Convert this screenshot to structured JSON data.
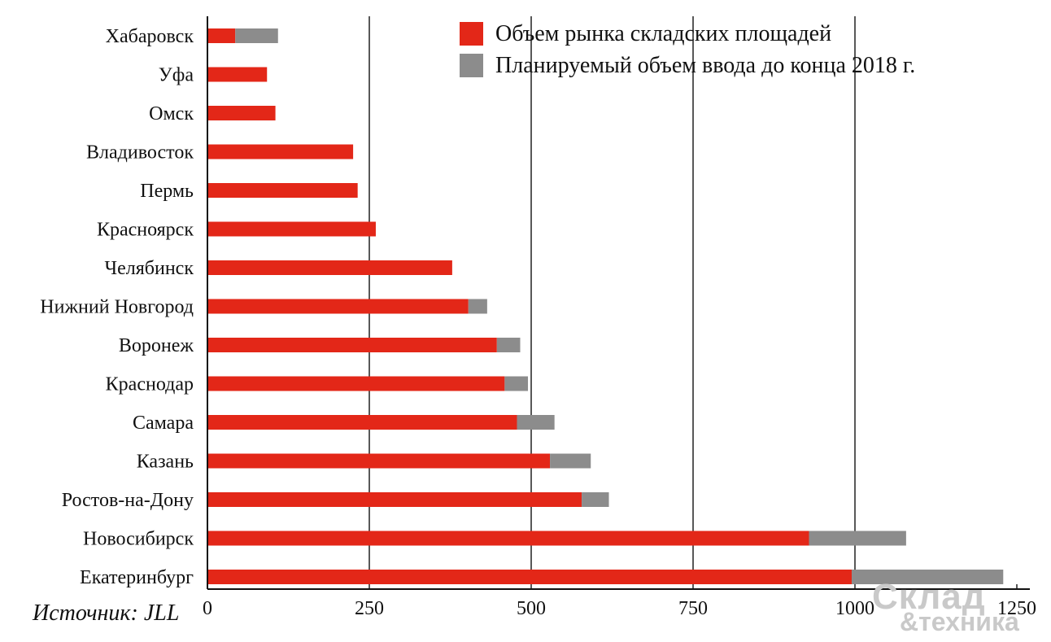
{
  "chart_data": {
    "type": "bar",
    "orientation": "horizontal",
    "stacked": true,
    "categories": [
      "Хабаровск",
      "Уфа",
      "Омск",
      "Владивосток",
      "Пермь",
      "Красноярск",
      "Челябинск",
      "Нижний Новгород",
      "Воронеж",
      "Краснодар",
      "Самара",
      "Казань",
      "Ростов-на-Дону",
      "Новосибирск",
      "Екатеринбург"
    ],
    "series": [
      {
        "name": "Объем рынка складских площадей",
        "color": "#e32718",
        "values": [
          43,
          92,
          105,
          225,
          232,
          260,
          378,
          403,
          447,
          459,
          478,
          529,
          578,
          929,
          995
        ]
      },
      {
        "name": "Планируемый объем ввода до конца 2018 г.",
        "color": "#8c8c8c",
        "values": [
          66,
          0,
          0,
          0,
          0,
          0,
          0,
          29,
          36,
          36,
          58,
          63,
          42,
          150,
          234
        ]
      }
    ],
    "xlim": [
      0,
      1250
    ],
    "xticks": [
      "0",
      "250",
      "500",
      "750",
      "1000",
      "1250"
    ],
    "grid": true,
    "legend": "top-right"
  },
  "source_label": "Источник: JLL",
  "watermark": {
    "line1": "Склад",
    "line2": "&техника"
  }
}
